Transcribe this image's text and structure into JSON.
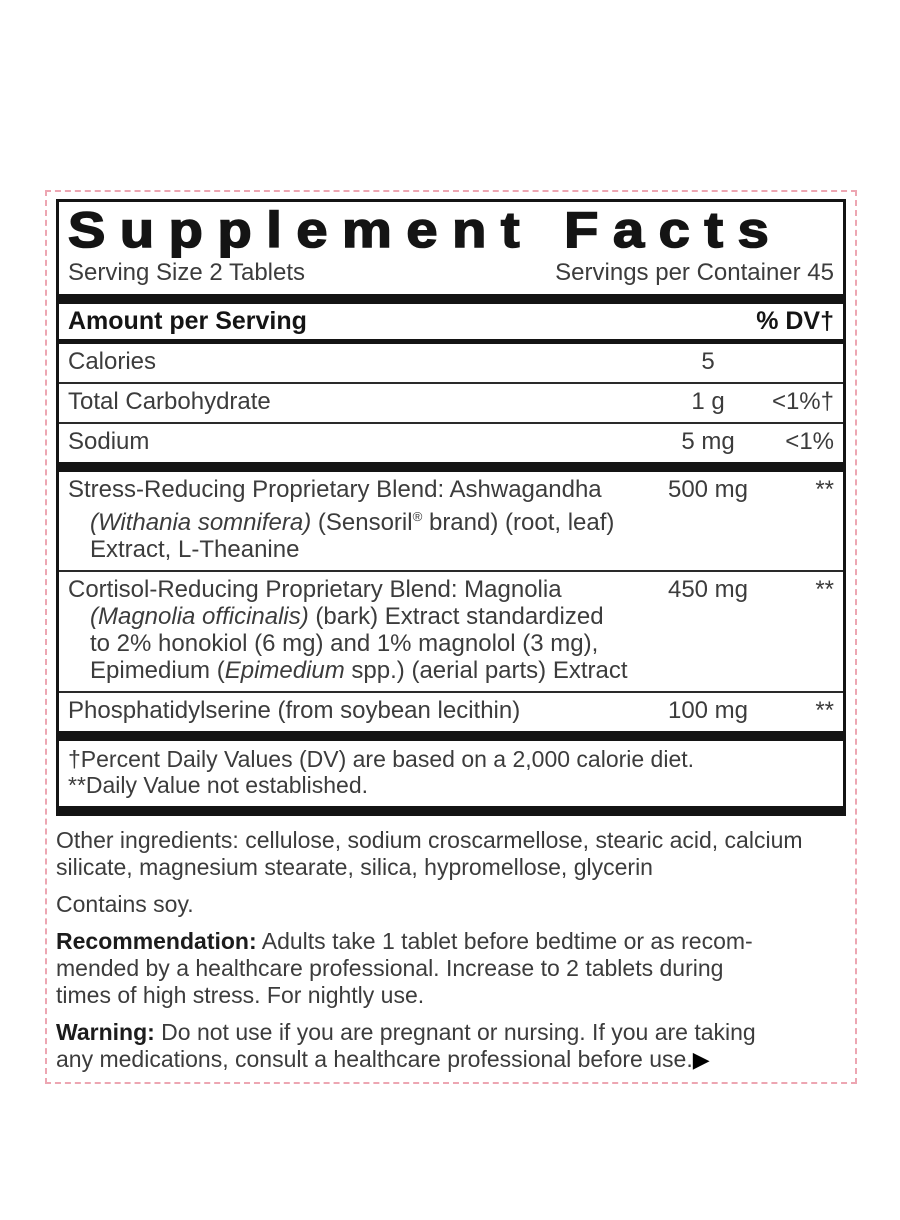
{
  "panel": {
    "title": "Supplement Facts",
    "serving_size": "Serving Size 2 Tablets",
    "servings_per_container": "Servings per Container 45",
    "col_headers": {
      "left": "Amount per Serving",
      "right": "% DV†"
    },
    "nutrients": [
      {
        "name": "Calories",
        "amount": "5",
        "dv": ""
      },
      {
        "name": "Total Carbohydrate",
        "amount": "1 g",
        "dv": "<1%†"
      },
      {
        "name": "Sodium",
        "amount": "5 mg",
        "dv": "<1%"
      }
    ],
    "stress_blend": {
      "name": "Stress-Reducing Proprietary Blend: Ashwagandha",
      "amount": "500 mg",
      "dv": "**",
      "l2_italic": "(Withania somnifera)",
      "l2_a": " (Sensoril",
      "l2_regmark": "®",
      "l2_b": " brand) (root, leaf)",
      "l3": "Extract, L-Theanine"
    },
    "cortisol_blend": {
      "name": "Cortisol-Reducing Proprietary Blend: Magnolia",
      "amount": "450 mg",
      "dv": "**",
      "l2_italic": "(Magnolia officinalis)",
      "l2_a": " (bark) Extract standardized",
      "l3": "to 2% honokiol (6 mg) and 1% magnolol (3 mg),",
      "l4_a": "Epimedium (",
      "l4_italic": "Epimedium",
      "l4_b": " spp.) (aerial parts) Extract"
    },
    "phosphatidylserine": {
      "name": "Phosphatidylserine (from soybean lecithin)",
      "amount": "100 mg",
      "dv": "**"
    },
    "footnotes": {
      "line1": "†Percent Daily Values (DV) are based on a 2,000 calorie diet.",
      "line2": "**Daily Value not established."
    }
  },
  "below": {
    "other_ingredients_line1": "Other ingredients: cellulose, sodium croscarmellose, stearic acid, calcium",
    "other_ingredients_line2": "silicate, magnesium stearate, silica, hypromellose, glycerin",
    "contains": "Contains soy.",
    "recommendation_label": "Recommendation:",
    "recommendation_line1_rest": " Adults take 1 tablet before bedtime or as recom-",
    "recommendation_line2": "mended by a healthcare professional. Increase to 2 tablets during",
    "recommendation_line3": "times of high stress. For nightly use.",
    "warning_label": "Warning:",
    "warning_line1_rest": " Do not use if you are pregnant or nursing. If you are taking",
    "warning_line2": "any medications, consult a healthcare professional before use.",
    "continuation_arrow": "▶"
  },
  "colors": {
    "rule_black": "#141414",
    "text_gray": "#3c3c3c",
    "cutline_pink": "#eda6b2",
    "background": "#ffffff"
  }
}
